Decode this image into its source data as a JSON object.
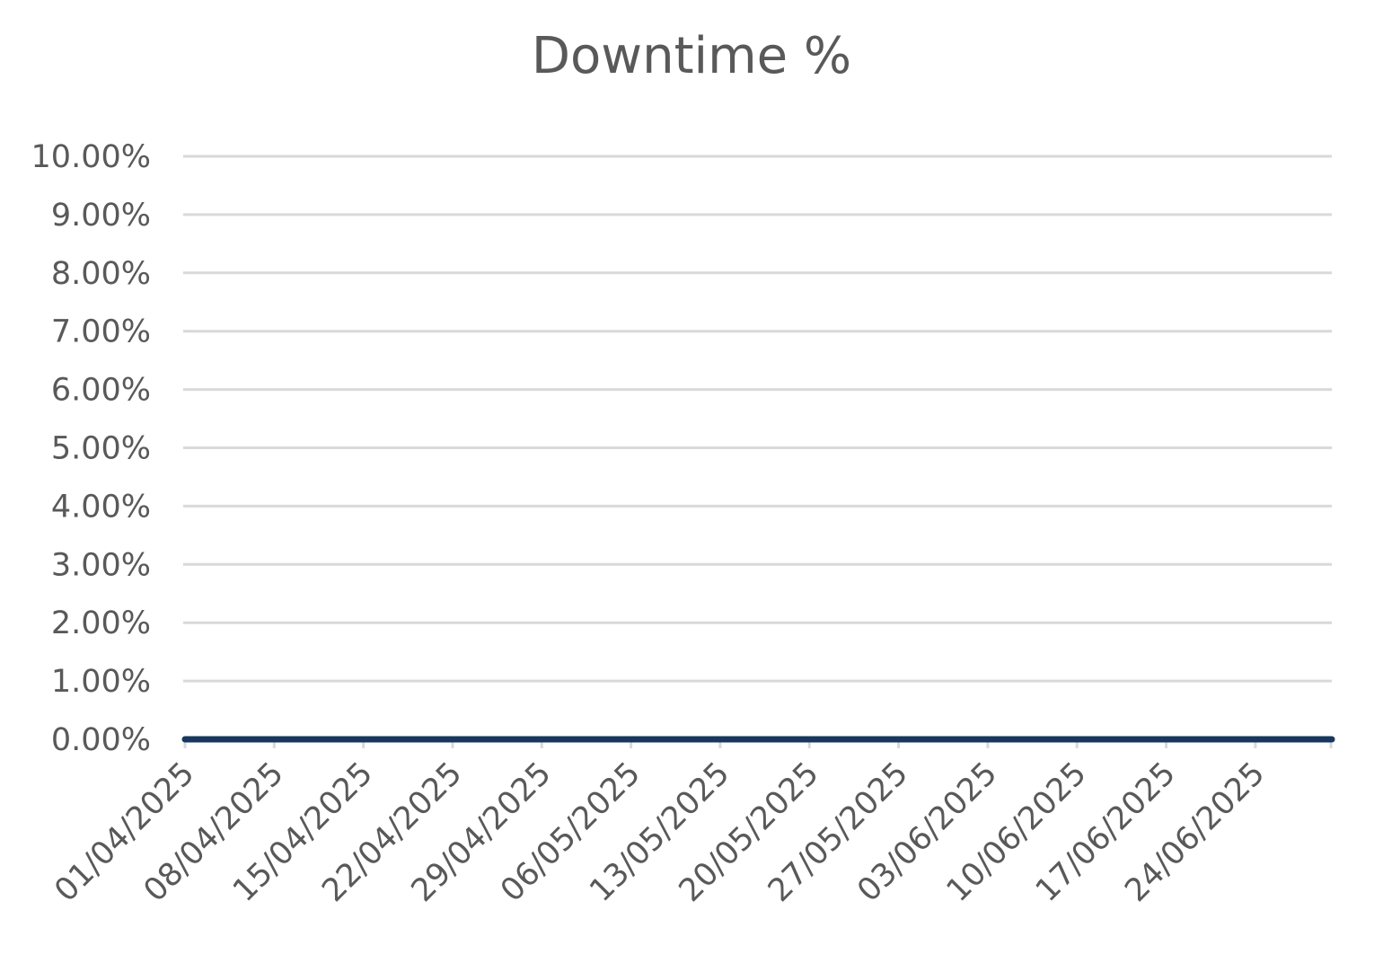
{
  "chart_data": {
    "type": "line",
    "title": "Downtime %",
    "xlabel": "",
    "ylabel": "",
    "x_tick_labels": [
      "01/04/2025",
      "08/04/2025",
      "15/04/2025",
      "22/04/2025",
      "29/04/2025",
      "06/05/2025",
      "13/05/2025",
      "20/05/2025",
      "27/05/2025",
      "03/06/2025",
      "10/06/2025",
      "17/06/2025",
      "24/06/2025"
    ],
    "x_range": [
      "01/04/2025",
      "30/06/2025"
    ],
    "y_tick_labels": [
      "0.00%",
      "1.00%",
      "2.00%",
      "3.00%",
      "4.00%",
      "5.00%",
      "6.00%",
      "7.00%",
      "8.00%",
      "9.00%",
      "10.00%"
    ],
    "ylim": [
      0,
      10
    ],
    "grid": true,
    "legend": "none",
    "series": [
      {
        "color": "#17375e",
        "x": [
          "01/04/2025",
          "30/06/2025"
        ],
        "values": [
          0,
          0
        ]
      }
    ],
    "colors": {
      "gridline": "#d9d9d9",
      "text": "#595959",
      "series": "#17375e"
    }
  }
}
